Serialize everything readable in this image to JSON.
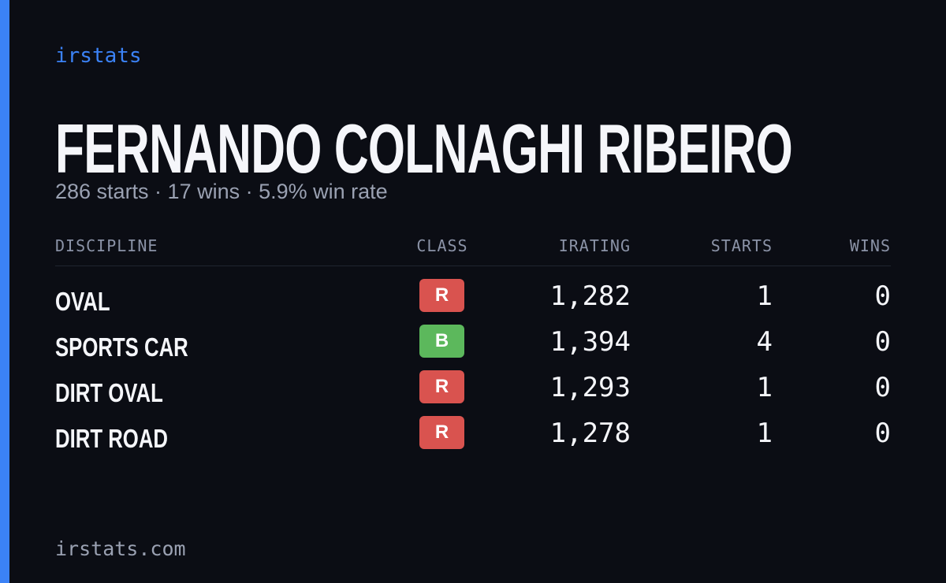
{
  "brand": "irstats",
  "driver": {
    "name": "FERNANDO COLNAGHI RIBEIRO",
    "summary": "286 starts · 17 wins · 5.9% win rate"
  },
  "table": {
    "headers": [
      "DISCIPLINE",
      "CLASS",
      "IRATING",
      "STARTS",
      "WINS"
    ],
    "rows": [
      [
        "OVAL",
        "R",
        "1,282",
        "1",
        "0"
      ],
      [
        "SPORTS CAR",
        "B",
        "1,394",
        "4",
        "0"
      ],
      [
        "DIRT OVAL",
        "R",
        "1,293",
        "1",
        "0"
      ],
      [
        "DIRT ROAD",
        "R",
        "1,278",
        "1",
        "0"
      ]
    ]
  },
  "footer": "irstats.com"
}
